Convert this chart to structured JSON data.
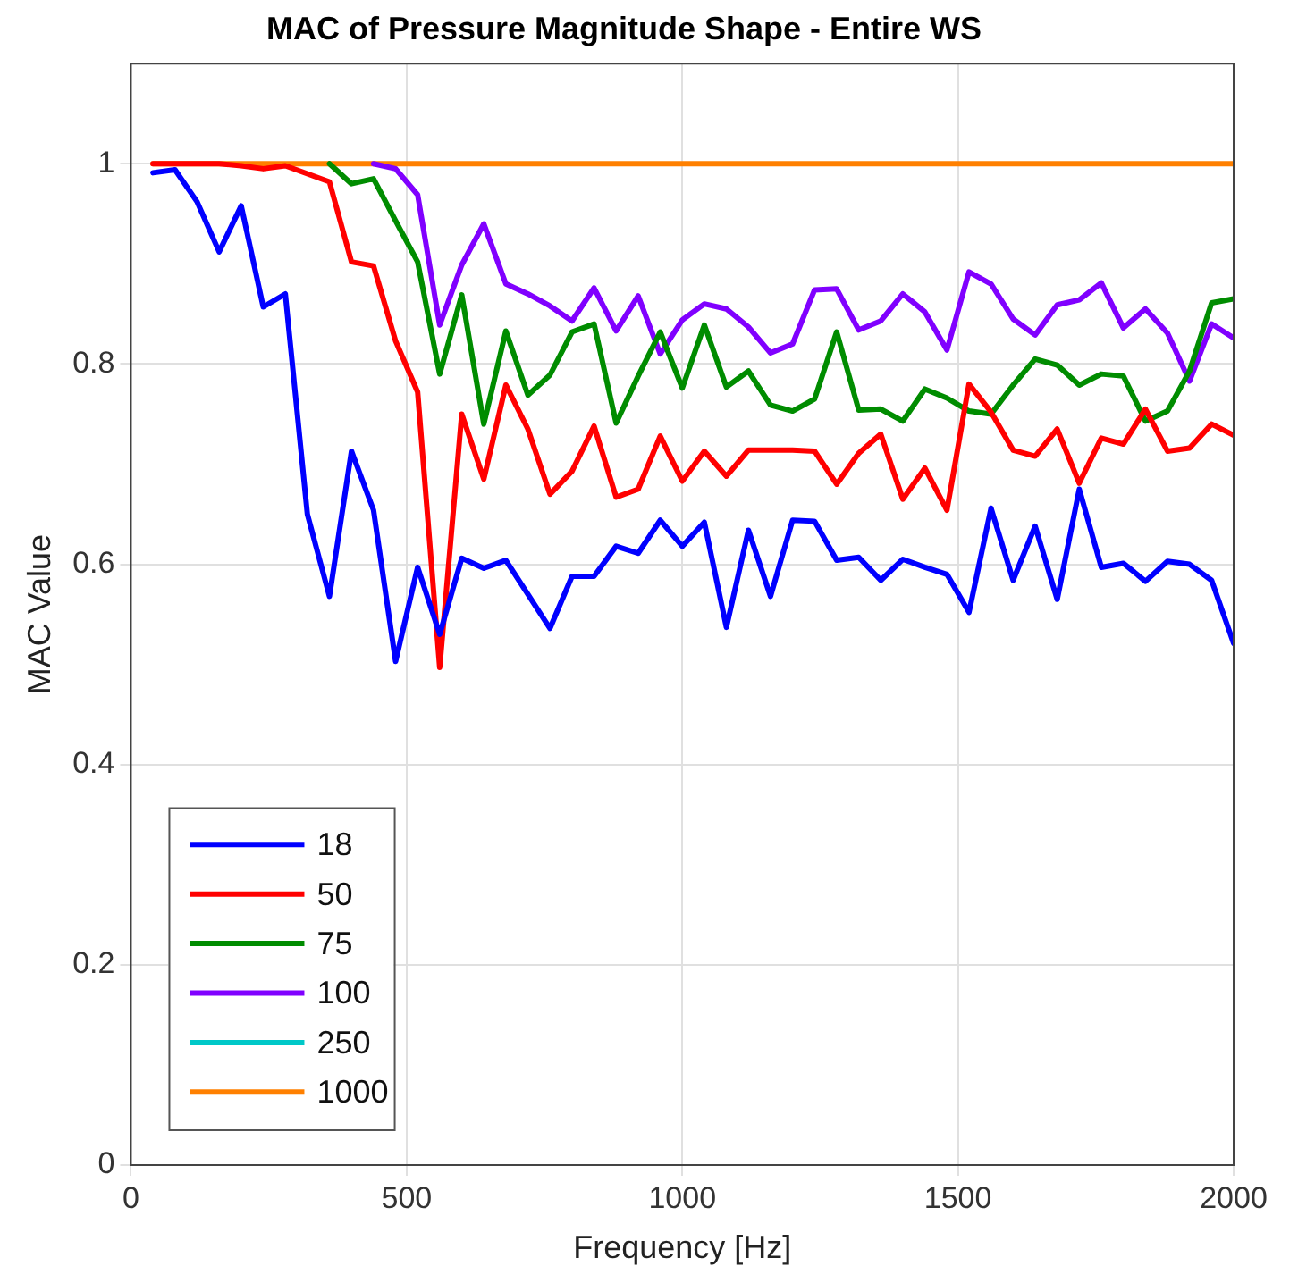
{
  "chart_data": {
    "type": "line",
    "title": "MAC of Pressure Magnitude Shape - Entire WS",
    "xlabel": "Frequency [Hz]",
    "ylabel": "MAC Value",
    "x": [
      40,
      80,
      120,
      160,
      200,
      240,
      280,
      320,
      360,
      400,
      440,
      480,
      520,
      560,
      600,
      640,
      680,
      720,
      760,
      800,
      840,
      880,
      920,
      960,
      1000,
      1040,
      1080,
      1120,
      1160,
      1200,
      1240,
      1280,
      1320,
      1360,
      1400,
      1440,
      1480,
      1520,
      1560,
      1600,
      1640,
      1680,
      1720,
      1760,
      1800,
      1840,
      1880,
      1920,
      1960,
      2000
    ],
    "xlim": [
      0,
      2000
    ],
    "xticks": [
      0,
      500,
      1000,
      1500,
      2000
    ],
    "ylim": [
      0,
      1.1
    ],
    "yticks": [
      0,
      0.2,
      0.4,
      0.6,
      0.8,
      1
    ],
    "grid": true,
    "legend": "bottom left",
    "marker": "none",
    "line_style": "solid",
    "series": [
      {
        "name": "18",
        "color": "#0000ff",
        "values": [
          0.991,
          0.994,
          0.962,
          0.912,
          0.958,
          0.857,
          0.87,
          0.65,
          0.568,
          0.713,
          0.654,
          0.503,
          0.597,
          0.53,
          0.606,
          0.596,
          0.604,
          0.57,
          0.536,
          0.588,
          0.588,
          0.618,
          0.611,
          0.644,
          0.618,
          0.642,
          0.537,
          0.634,
          0.568,
          0.644,
          0.643,
          0.604,
          0.607,
          0.584,
          0.605,
          0.597,
          0.59,
          0.552,
          0.656,
          0.584,
          0.638,
          0.565,
          0.675,
          0.597,
          0.601,
          0.583,
          0.603,
          0.6,
          0.584,
          0.521
        ]
      },
      {
        "name": "50",
        "color": "#ff0000",
        "values": [
          1,
          1,
          1,
          1,
          0.998,
          0.995,
          0.998,
          0.99,
          0.982,
          0.902,
          0.898,
          0.823,
          0.772,
          0.497,
          0.75,
          0.685,
          0.779,
          0.735,
          0.67,
          0.693,
          0.738,
          0.667,
          0.675,
          0.728,
          0.683,
          0.713,
          0.688,
          0.714,
          0.714,
          0.714,
          0.713,
          0.68,
          0.711,
          0.73,
          0.665,
          0.696,
          0.654,
          0.78,
          0.752,
          0.714,
          0.708,
          0.735,
          0.681,
          0.726,
          0.72,
          0.755,
          0.713,
          0.716,
          0.74,
          0.729
        ]
      },
      {
        "name": "75",
        "color": "#008c00",
        "values": [
          null,
          null,
          null,
          null,
          null,
          null,
          null,
          null,
          1,
          0.98,
          0.985,
          0.943,
          0.902,
          0.79,
          0.869,
          0.74,
          0.833,
          0.769,
          0.789,
          0.832,
          0.84,
          0.741,
          0.788,
          0.832,
          0.776,
          0.839,
          0.777,
          0.793,
          0.759,
          0.753,
          0.765,
          0.832,
          0.754,
          0.755,
          0.743,
          0.775,
          0.766,
          0.753,
          0.75,
          0.779,
          0.805,
          0.799,
          0.779,
          0.79,
          0.788,
          0.743,
          0.753,
          0.793,
          0.861,
          0.865
        ]
      },
      {
        "name": "100",
        "color": "#8000ff",
        "values": [
          null,
          null,
          null,
          null,
          null,
          null,
          null,
          null,
          null,
          null,
          1,
          0.995,
          0.969,
          0.839,
          0.899,
          0.94,
          0.88,
          0.87,
          0.858,
          0.843,
          0.876,
          0.833,
          0.868,
          0.81,
          0.844,
          0.86,
          0.855,
          0.837,
          0.811,
          0.82,
          0.874,
          0.875,
          0.834,
          0.843,
          0.87,
          0.852,
          0.814,
          0.892,
          0.88,
          0.845,
          0.829,
          0.859,
          0.864,
          0.881,
          0.836,
          0.855,
          0.831,
          0.783,
          0.84,
          0.826
        ]
      },
      {
        "name": "250",
        "color": "#00c8c8",
        "values": [
          null,
          null,
          null,
          null,
          null,
          null,
          null,
          null,
          null,
          null,
          null,
          null,
          null,
          null,
          null,
          null,
          null,
          null,
          null,
          null,
          null,
          null,
          null,
          null,
          null,
          null,
          null,
          null,
          null,
          null,
          null,
          null,
          null,
          null,
          null,
          null,
          null,
          null,
          null,
          null,
          null,
          null,
          null,
          null,
          null,
          null,
          null,
          null,
          null,
          null
        ]
      },
      {
        "name": "1000",
        "color": "#ff8000",
        "x": [
          40,
          2000
        ],
        "values": [
          1,
          1
        ]
      }
    ]
  }
}
